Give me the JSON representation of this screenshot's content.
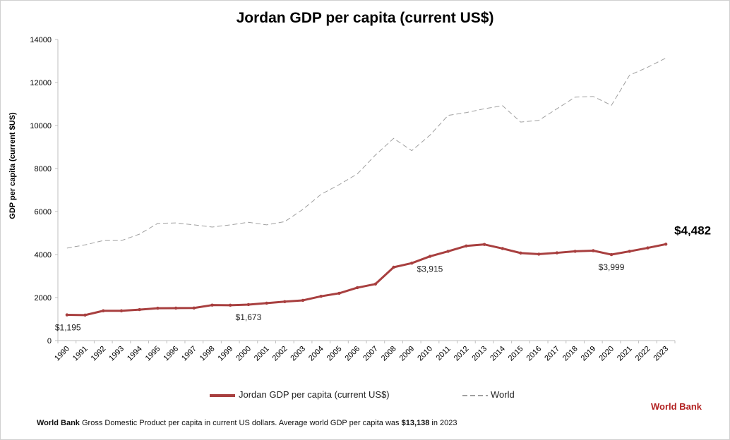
{
  "colors": {
    "jordan": "#a83f3f",
    "world": "#a0a0a0",
    "axis": "#bfbfbf",
    "brand": "#b22222"
  },
  "chart_data": {
    "type": "line",
    "title": "Jordan GDP per capita (current US$)",
    "xlabel": "",
    "ylabel": "GDP per capita (current $US)",
    "ylim": [
      0,
      14000
    ],
    "yticks": [
      0,
      2000,
      4000,
      6000,
      8000,
      10000,
      12000,
      14000
    ],
    "grid": false,
    "legend_position": "bottom",
    "x": [
      "1990",
      "1991",
      "1992",
      "1993",
      "1994",
      "1995",
      "1996",
      "1997",
      "1998",
      "1999",
      "2000",
      "2001",
      "2002",
      "2003",
      "2004",
      "2005",
      "2006",
      "2007",
      "2008",
      "2009",
      "2010",
      "2011",
      "2012",
      "2013",
      "2014",
      "2015",
      "2016",
      "2017",
      "2018",
      "2019",
      "2020",
      "2021",
      "2022",
      "2023"
    ],
    "series": [
      {
        "name": "Jordan GDP per capita (current US$)",
        "values": [
          1195,
          1185,
          1385,
          1385,
          1440,
          1505,
          1510,
          1515,
          1650,
          1645,
          1673,
          1740,
          1810,
          1870,
          2060,
          2200,
          2460,
          2630,
          3410,
          3600,
          3915,
          4150,
          4400,
          4470,
          4280,
          4070,
          4020,
          4080,
          4150,
          4180,
          3999,
          4150,
          4310,
          4482
        ]
      },
      {
        "name": "World",
        "values": [
          4300,
          4450,
          4650,
          4650,
          4950,
          5450,
          5470,
          5380,
          5280,
          5380,
          5500,
          5380,
          5530,
          6100,
          6800,
          7250,
          7750,
          8630,
          9400,
          8830,
          9550,
          10470,
          10600,
          10780,
          10920,
          10160,
          10240,
          10780,
          11320,
          11350,
          10940,
          12340,
          12710,
          13138
        ]
      }
    ],
    "annotations": [
      {
        "index": 0,
        "text": "$1,195",
        "series": 0,
        "position": "below"
      },
      {
        "index": 10,
        "text": "$1,673",
        "series": 0,
        "position": "below"
      },
      {
        "index": 20,
        "text": "$3,915",
        "series": 0,
        "position": "below"
      },
      {
        "index": 30,
        "text": "$3,999",
        "series": 0,
        "position": "below"
      },
      {
        "index": 33,
        "text": "$4,482",
        "series": 0,
        "position": "right",
        "emphasis": true
      }
    ]
  },
  "legend": {
    "jordan": "Jordan GDP per capita (current US$)",
    "world": "World"
  },
  "source_brand": "World Bank",
  "footnote": {
    "brand": "World Bank",
    "text": " Gross Domestic Product per capita in current US dollars.  Average world GDP per capita was ",
    "value": "$13,138",
    "suffix": " in 2023"
  }
}
